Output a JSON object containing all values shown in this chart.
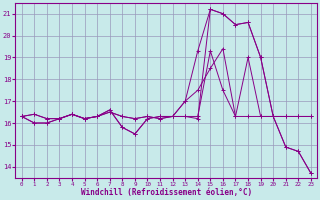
{
  "xlabel": "Windchill (Refroidissement éolien,°C)",
  "background_color": "#c8eaea",
  "grid_color": "#aaaacc",
  "line_color": "#880088",
  "xlim": [
    -0.5,
    23.5
  ],
  "ylim": [
    13.5,
    21.5
  ],
  "xticks": [
    0,
    1,
    2,
    3,
    4,
    5,
    6,
    7,
    8,
    9,
    10,
    11,
    12,
    13,
    14,
    15,
    16,
    17,
    18,
    19,
    20,
    21,
    22,
    23
  ],
  "yticks": [
    14,
    15,
    16,
    17,
    18,
    19,
    20,
    21
  ],
  "lines": [
    [
      16.3,
      16.4,
      16.2,
      16.2,
      16.4,
      16.2,
      16.3,
      16.5,
      16.3,
      16.2,
      16.3,
      16.2,
      16.3,
      16.3,
      16.2,
      21.2,
      21.0,
      20.5,
      20.6,
      19.0,
      16.3,
      14.9,
      14.7,
      13.7
    ],
    [
      16.3,
      16.4,
      16.2,
      16.2,
      16.4,
      16.2,
      16.3,
      16.5,
      16.3,
      16.2,
      16.3,
      16.2,
      16.3,
      16.3,
      16.3,
      19.3,
      17.5,
      16.3,
      19.0,
      16.3,
      16.3,
      16.3,
      16.3,
      16.3
    ],
    [
      16.3,
      16.0,
      16.0,
      16.2,
      16.4,
      16.2,
      16.3,
      16.6,
      15.8,
      15.5,
      16.2,
      16.3,
      16.3,
      17.0,
      17.5,
      18.5,
      19.4,
      16.3,
      16.3,
      16.3,
      16.3,
      16.3,
      16.3,
      16.3
    ],
    [
      16.3,
      16.0,
      16.0,
      16.2,
      16.4,
      16.2,
      16.3,
      16.6,
      15.8,
      15.5,
      16.2,
      16.3,
      16.3,
      17.0,
      19.3,
      21.2,
      21.0,
      20.5,
      20.6,
      19.0,
      16.3,
      14.9,
      14.7,
      13.7
    ]
  ],
  "figsize": [
    3.2,
    2.0
  ],
  "dpi": 100
}
